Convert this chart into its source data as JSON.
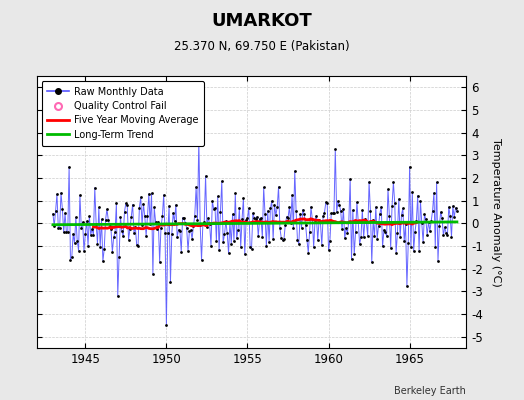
{
  "title": "UMARKOT",
  "subtitle": "25.370 N, 69.750 E (Pakistan)",
  "ylabel": "Temperature Anomaly (°C)",
  "credit": "Berkeley Earth",
  "xlim": [
    1942.0,
    1968.5
  ],
  "ylim": [
    -5.5,
    6.5
  ],
  "yticks": [
    -5,
    -4,
    -3,
    -2,
    -1,
    0,
    1,
    2,
    3,
    4,
    5,
    6
  ],
  "xticks": [
    1945,
    1950,
    1955,
    1960,
    1965
  ],
  "bg_color": "#e8e8e8",
  "plot_bg_color": "#ffffff",
  "raw_line_color": "#5555ff",
  "raw_dot_color": "#000000",
  "moving_avg_color": "#ff0000",
  "trend_color": "#00bb00",
  "qc_fail_color": "#ff69b4",
  "seed": 42,
  "n_months": 300,
  "start_year": 1943.0
}
